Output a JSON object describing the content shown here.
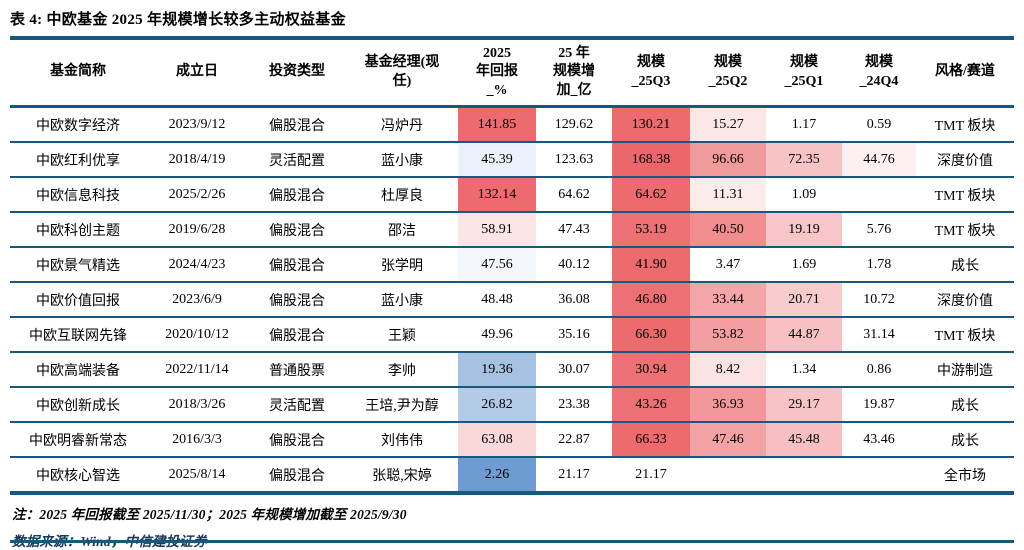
{
  "title": "表 4: 中欧基金 2025 年规模增长较多主动权益基金",
  "colors": {
    "rule_blue": "#17587F",
    "heat_red_strong": "#ED6A6E",
    "heat_blue_strong": "#6E9CD2",
    "source_text": "#17375E"
  },
  "table": {
    "columns": [
      "基金简称",
      "成立日",
      "投资类型",
      "基金经理(现\n任)",
      "2025\n年回报\n_%",
      "25 年\n规模增\n加_亿",
      "规模\n_25Q3",
      "规模\n_25Q2",
      "规模\n_25Q1",
      "规模\n_24Q4",
      "风格/赛道"
    ],
    "rows": [
      {
        "cells": [
          "中欧数字经济",
          "2023/9/12",
          "偏股混合",
          "冯炉丹",
          "141.85",
          "129.62",
          "130.21",
          "15.27",
          "1.17",
          "0.59",
          "TMT 板块"
        ],
        "bg": [
          "",
          "",
          "",
          "",
          "#ED6A6E",
          "",
          "#ED6A6E",
          "#FBE7E8",
          "",
          "",
          ""
        ]
      },
      {
        "cells": [
          "中欧红利优享",
          "2018/4/19",
          "灵活配置",
          "蓝小康",
          "45.39",
          "123.63",
          "168.38",
          "96.66",
          "72.35",
          "44.76",
          "深度价值"
        ],
        "bg": [
          "",
          "",
          "",
          "",
          "#EAF1F9",
          "",
          "#EB676C",
          "#F19A9C",
          "#F7C3C5",
          "#FDF0F0",
          ""
        ]
      },
      {
        "cells": [
          "中欧信息科技",
          "2025/2/26",
          "偏股混合",
          "杜厚良",
          "132.14",
          "64.62",
          "64.62",
          "11.31",
          "1.09",
          "",
          "TMT 板块"
        ],
        "bg": [
          "",
          "",
          "",
          "",
          "#ED6A6E",
          "",
          "#ED6A6E",
          "#FBEBEB",
          "",
          "",
          ""
        ]
      },
      {
        "cells": [
          "中欧科创主题",
          "2019/6/28",
          "偏股混合",
          "邵洁",
          "58.91",
          "47.43",
          "53.19",
          "40.50",
          "19.19",
          "5.76",
          "TMT 板块"
        ],
        "bg": [
          "",
          "",
          "",
          "",
          "#FBE5E6",
          "",
          "#ED7074",
          "#F18C8F",
          "#F8C6C8",
          "",
          ""
        ]
      },
      {
        "cells": [
          "中欧景气精选",
          "2024/4/23",
          "偏股混合",
          "张学明",
          "47.56",
          "40.12",
          "41.90",
          "3.47",
          "1.69",
          "1.78",
          "成长"
        ],
        "bg": [
          "",
          "",
          "",
          "",
          "#F3F7FB",
          "",
          "#ED6A6E",
          "",
          "",
          "",
          ""
        ]
      },
      {
        "cells": [
          "中欧价值回报",
          "2023/6/9",
          "偏股混合",
          "蓝小康",
          "48.48",
          "36.08",
          "46.80",
          "33.44",
          "20.71",
          "10.72",
          "深度价值"
        ],
        "bg": [
          "",
          "",
          "",
          "",
          "",
          "",
          "#ED7074",
          "#F4A5A7",
          "#F8CBCC",
          "",
          ""
        ]
      },
      {
        "cells": [
          "中欧互联网先锋",
          "2020/10/12",
          "偏股混合",
          "王颖",
          "49.96",
          "35.16",
          "66.30",
          "53.82",
          "44.87",
          "31.14",
          "TMT 板块"
        ],
        "bg": [
          "",
          "",
          "",
          "",
          "",
          "",
          "#ED6A6E",
          "#F39EA0",
          "#F7C0C2",
          "",
          ""
        ]
      },
      {
        "cells": [
          "中欧高端装备",
          "2022/11/14",
          "普通股票",
          "李帅",
          "19.36",
          "30.07",
          "30.94",
          "8.42",
          "1.34",
          "0.86",
          "中游制造"
        ],
        "bg": [
          "",
          "",
          "",
          "",
          "#A5C2E2",
          "",
          "#ED7074",
          "#FBE2E3",
          "",
          "",
          ""
        ]
      },
      {
        "cells": [
          "中欧创新成长",
          "2018/3/26",
          "灵活配置",
          "王培,尹为醇",
          "26.82",
          "23.38",
          "43.26",
          "36.93",
          "29.17",
          "19.87",
          "成长"
        ],
        "bg": [
          "",
          "",
          "",
          "",
          "#B4CBE8",
          "",
          "#ED7074",
          "#F2989B",
          "#F7C3C5",
          "",
          ""
        ]
      },
      {
        "cells": [
          "中欧明睿新常态",
          "2016/3/3",
          "偏股混合",
          "刘伟伟",
          "63.08",
          "22.87",
          "66.33",
          "47.46",
          "45.48",
          "43.46",
          "成长"
        ],
        "bg": [
          "",
          "",
          "",
          "",
          "#F9D8D9",
          "",
          "#ED6A6E",
          "#F4A3A5",
          "#F7BFC1",
          "",
          ""
        ]
      },
      {
        "cells": [
          "中欧核心智选",
          "2025/8/14",
          "偏股混合",
          "张聪,宋婷",
          "2.26",
          "21.17",
          "21.17",
          "",
          "",
          "",
          "全市场"
        ],
        "bg": [
          "",
          "",
          "",
          "",
          "#6E9CD2",
          "",
          "",
          "",
          "",
          "",
          ""
        ]
      }
    ]
  },
  "notes": {
    "note": "注：2025 年回报截至 2025/11/30；2025 年规模增加截至 2025/9/30",
    "source": "数据来源：Wind，中信建投证券"
  }
}
